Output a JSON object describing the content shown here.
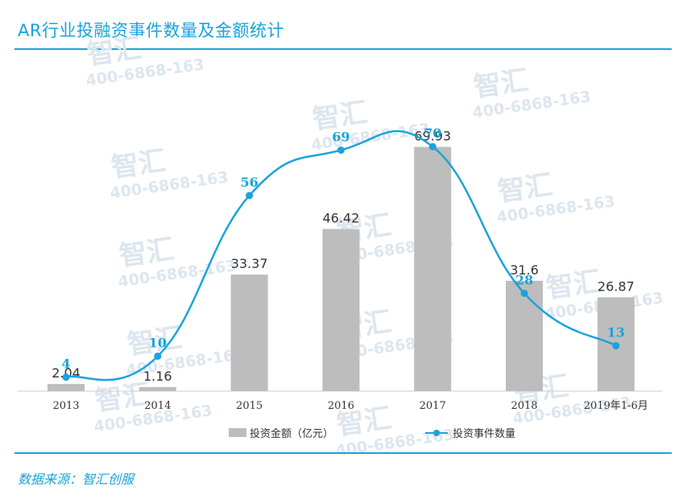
{
  "title": "AR行业投融资事件数量及金额统计",
  "source": "数据来源：智汇创服",
  "watermark": {
    "brand": "智汇",
    "phone": "400-6868-163"
  },
  "colors": {
    "accent": "#1aa3dc",
    "bar": "#bdbdbd",
    "line": "#1aa3dc",
    "label_line": "#1aa3dc",
    "label_bar": "#333333"
  },
  "chart_data": {
    "type": "bar",
    "categories": [
      "2013",
      "2014",
      "2015",
      "2016",
      "2017",
      "2018",
      "2019年1-6月"
    ],
    "series": [
      {
        "name": "投资金额（亿元）",
        "type": "bar",
        "values": [
          2.04,
          1.16,
          33.37,
          46.42,
          69.93,
          31.6,
          26.87
        ],
        "labels": [
          "2.04",
          "1.16",
          "33.37",
          "46.42",
          "69.93",
          "31.6",
          "26.87"
        ]
      },
      {
        "name": "投资事件数量",
        "type": "line",
        "values": [
          4,
          10,
          56,
          69,
          70,
          28,
          13
        ],
        "labels": [
          "4",
          "10",
          "56",
          "69",
          "70",
          "28",
          "13"
        ]
      }
    ],
    "title": "",
    "xlabel": "",
    "ylabel": "",
    "ylim": [
      0,
      100
    ],
    "grid": false,
    "legend": "bottom"
  }
}
